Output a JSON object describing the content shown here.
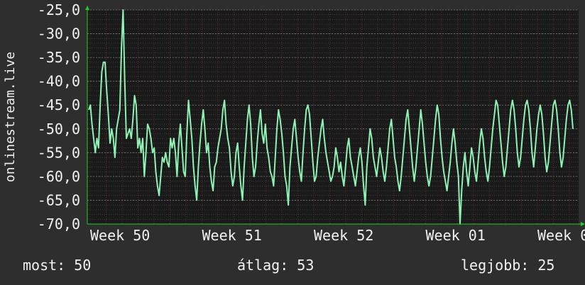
{
  "chart_data": {
    "type": "line",
    "title": "",
    "xlabel": "",
    "ylabel": "onlinestream.live",
    "ylim": [
      -70.0,
      -25.0
    ],
    "yticks": [
      "-25,0",
      "-30,0",
      "-35,0",
      "-40,0",
      "-45,0",
      "-50,0",
      "-55,0",
      "-60,0",
      "-65,0",
      "-70,0"
    ],
    "yticks_values": [
      -25,
      -30,
      -35,
      -40,
      -45,
      -50,
      -55,
      -60,
      -65,
      -70
    ],
    "xtick_labels": [
      "Week 50",
      "Week 51",
      "Week 52",
      "Week 01",
      "Week 0"
    ],
    "grid": true,
    "colors": {
      "line": "#8ff2b4",
      "background": "#1a1a1a",
      "grid": "#555555",
      "vgrid": "#6a3030",
      "axis": "#22cc22",
      "text": "#f2f2f2",
      "page": "#2e2e2e"
    },
    "series": [
      {
        "values": [
          -46,
          -45,
          -49,
          -52,
          -55,
          -52,
          -54,
          -45,
          -38,
          -36,
          -36,
          -42,
          -47,
          -53,
          -50,
          -52,
          -56,
          -50,
          -48,
          -46,
          -33,
          -25,
          -40,
          -52,
          -51,
          -50,
          -52,
          -48,
          -43,
          -45,
          -54,
          -52,
          -55,
          -52,
          -60,
          -55,
          -49,
          -50,
          -52,
          -55,
          -54,
          -59,
          -62,
          -64,
          -60,
          -56,
          -57,
          -55,
          -57,
          -58,
          -52,
          -54,
          -52,
          -55,
          -60,
          -53,
          -49,
          -54,
          -59,
          -60,
          -51,
          -44,
          -48,
          -52,
          -58,
          -62,
          -65,
          -58,
          -53,
          -49,
          -46,
          -50,
          -55,
          -53,
          -58,
          -61,
          -63,
          -58,
          -57,
          -54,
          -52,
          -50,
          -46,
          -44,
          -49,
          -52,
          -54,
          -59,
          -62,
          -60,
          -55,
          -53,
          -58,
          -62,
          -65,
          -58,
          -53,
          -48,
          -45,
          -49,
          -56,
          -60,
          -58,
          -53,
          -49,
          -46,
          -51,
          -53,
          -49,
          -54,
          -56,
          -59,
          -60,
          -62,
          -56,
          -50,
          -46,
          -48,
          -51,
          -55,
          -60,
          -62,
          -66,
          -58,
          -54,
          -50,
          -48,
          -52,
          -56,
          -59,
          -61,
          -55,
          -50,
          -46,
          -45,
          -47,
          -52,
          -57,
          -61,
          -60,
          -56,
          -53,
          -50,
          -48,
          -52,
          -55,
          -57,
          -59,
          -61,
          -60,
          -58,
          -54,
          -56,
          -59,
          -57,
          -60,
          -62,
          -58,
          -54,
          -52,
          -56,
          -58,
          -60,
          -62,
          -59,
          -56,
          -54,
          -57,
          -62,
          -66,
          -58,
          -54,
          -50,
          -52,
          -56,
          -58,
          -60,
          -57,
          -54,
          -56,
          -59,
          -61,
          -58,
          -54,
          -50,
          -48,
          -52,
          -56,
          -58,
          -61,
          -63,
          -60,
          -56,
          -52,
          -48,
          -46,
          -50,
          -54,
          -58,
          -61,
          -58,
          -54,
          -50,
          -46,
          -49,
          -53,
          -57,
          -60,
          -62,
          -60,
          -56,
          -52,
          -48,
          -45,
          -47,
          -52,
          -56,
          -59,
          -61,
          -63,
          -60,
          -57,
          -53,
          -50,
          -53,
          -57,
          -60,
          -70,
          -63,
          -58,
          -55,
          -59,
          -62,
          -58,
          -54,
          -56,
          -59,
          -61,
          -57,
          -53,
          -50,
          -52,
          -56,
          -59,
          -61,
          -58,
          -54,
          -50,
          -47,
          -44,
          -45,
          -49,
          -53,
          -57,
          -60,
          -58,
          -54,
          -50,
          -46,
          -44,
          -46,
          -50,
          -55,
          -58,
          -56,
          -52,
          -48,
          -45,
          -44,
          -46,
          -50,
          -55,
          -58,
          -54,
          -50,
          -47,
          -45,
          -47,
          -51,
          -56,
          -59,
          -57,
          -53,
          -49,
          -45,
          -44,
          -46,
          -50,
          -55,
          -58,
          -56,
          -52,
          -48,
          -45,
          -44,
          -46,
          -50
        ]
      }
    ]
  },
  "stats": {
    "now": "most: 50",
    "avg": "átlag: 53",
    "best": "legjobb: 25"
  }
}
